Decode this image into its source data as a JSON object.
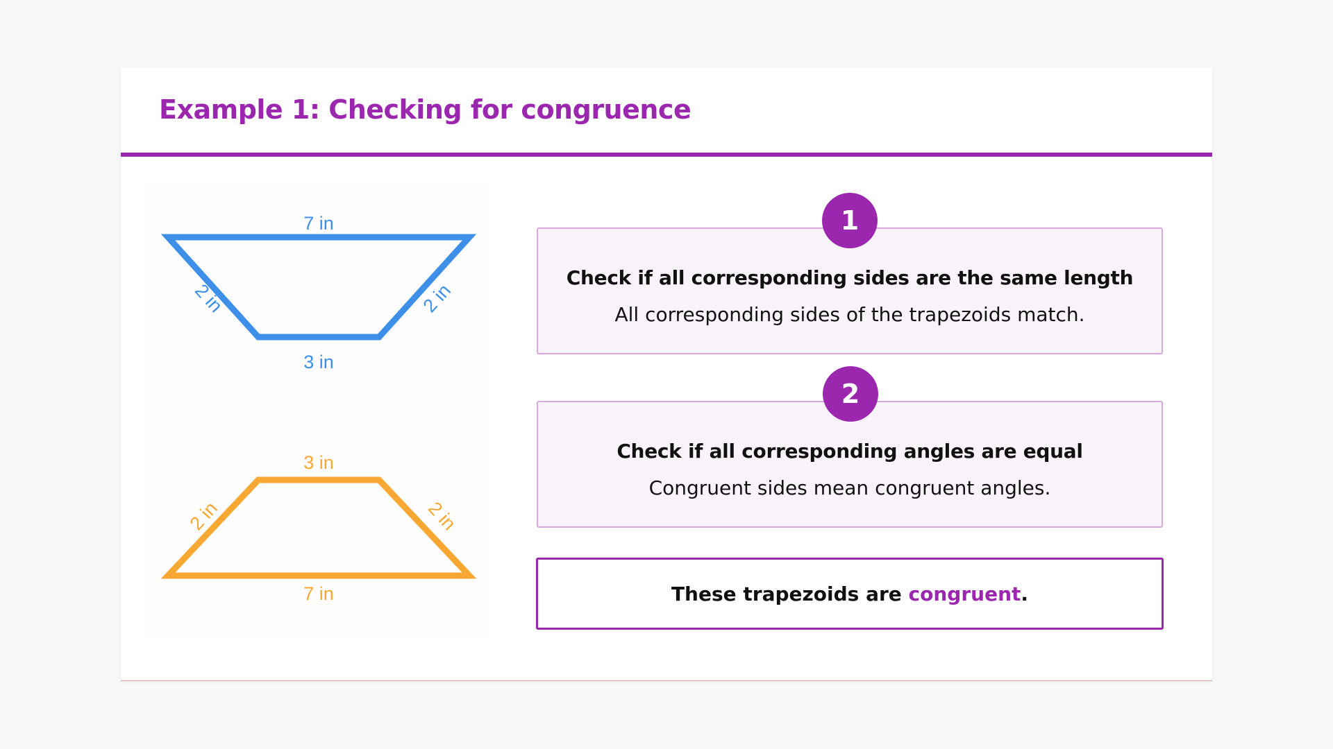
{
  "title": "Example 1: Checking for congruence",
  "figure": {
    "top_trapezoid": {
      "color": "#3d8fe8",
      "labels": {
        "top": "7 in",
        "left": "2 in",
        "right": "2 in",
        "bottom": "3 in"
      }
    },
    "bottom_trapezoid": {
      "color": "#f6a832",
      "labels": {
        "top": "3 in",
        "left": "2 in",
        "right": "2 in",
        "bottom": "7 in"
      }
    }
  },
  "steps": [
    {
      "number": "1",
      "heading": "Check if all corresponding sides are the same length",
      "text": "All corresponding sides of the trapezoids match."
    },
    {
      "number": "2",
      "heading": "Check if all corresponding angles are equal",
      "text": "Congruent sides mean congruent angles."
    }
  ],
  "conclusion": {
    "prefix": "These trapezoids are ",
    "highlight": "congruent",
    "suffix": "."
  },
  "colors": {
    "accent": "#9b27af",
    "blue": "#3d8fe8",
    "orange": "#f6a832"
  }
}
